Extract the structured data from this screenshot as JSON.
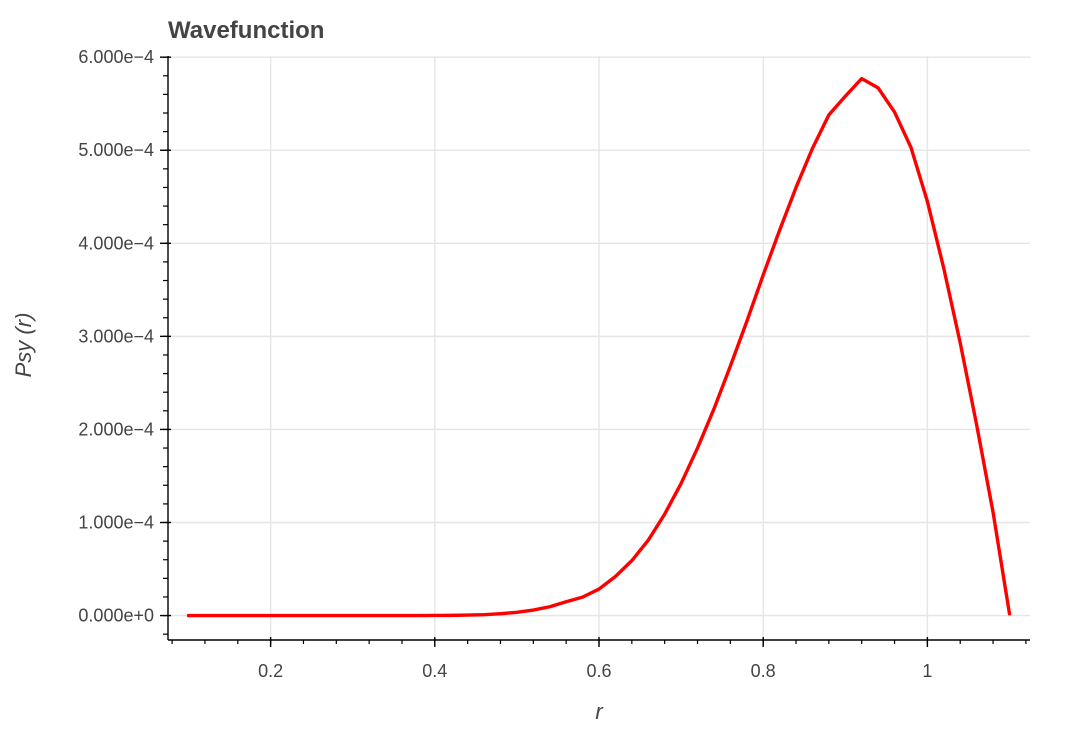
{
  "chart_data": {
    "type": "line",
    "title": "Wavefunction",
    "xlabel": "r",
    "ylabel": "Psy (r)",
    "xlim": [
      0.075,
      1.125
    ],
    "ylim": [
      -2.625e-05,
      0.00060125
    ],
    "x_ticks": [
      0.2,
      0.4,
      0.6,
      0.8,
      1.0
    ],
    "x_tick_labels": [
      "0.2",
      "0.4",
      "0.6",
      "0.8",
      "1"
    ],
    "y_ticks": [
      0,
      0.0001,
      0.0002,
      0.0003,
      0.0004,
      0.0005,
      0.0006
    ],
    "y_tick_labels": [
      "0.000e+0",
      "1.000e−4",
      "2.000e−4",
      "3.000e−4",
      "4.000e−4",
      "5.000e−4",
      "6.000e−4"
    ],
    "grid": true,
    "legend": "none",
    "series": [
      {
        "color": "#ff0000",
        "x": [
          0.1,
          0.12,
          0.14,
          0.16,
          0.18,
          0.2,
          0.22,
          0.24,
          0.26,
          0.28,
          0.3,
          0.32,
          0.34,
          0.36,
          0.38,
          0.4,
          0.42,
          0.44,
          0.46,
          0.48,
          0.5,
          0.52,
          0.54,
          0.56,
          0.58,
          0.6,
          0.62,
          0.64,
          0.66,
          0.68,
          0.7,
          0.72,
          0.74,
          0.76,
          0.78,
          0.8,
          0.82,
          0.84,
          0.86,
          0.88,
          0.9,
          0.92,
          0.94,
          0.96,
          0.98,
          1.0,
          1.02,
          1.04,
          1.06,
          1.08,
          1.1
        ],
        "y": [
          0,
          0,
          0,
          0,
          0,
          0,
          0,
          0,
          0,
          0,
          0,
          0,
          0,
          0,
          0,
          1e-07,
          2e-07,
          5e-07,
          1e-06,
          2e-06,
          3.5e-06,
          5.9e-06,
          9.5e-06,
          1.48e-05,
          1.98e-05,
          2.85e-05,
          4.2e-05,
          5.9e-05,
          8.1e-05,
          0.000109,
          0.000142,
          0.00018,
          0.000222,
          0.000268,
          0.000316,
          0.000366,
          0.000414,
          0.00046,
          0.000502,
          0.000538,
          0.000558,
          0.000577,
          0.000567,
          0.000541,
          0.000503,
          0.000445,
          0.000373,
          0.000293,
          0.000205,
          0.000111,
          2e-06
        ]
      }
    ]
  }
}
